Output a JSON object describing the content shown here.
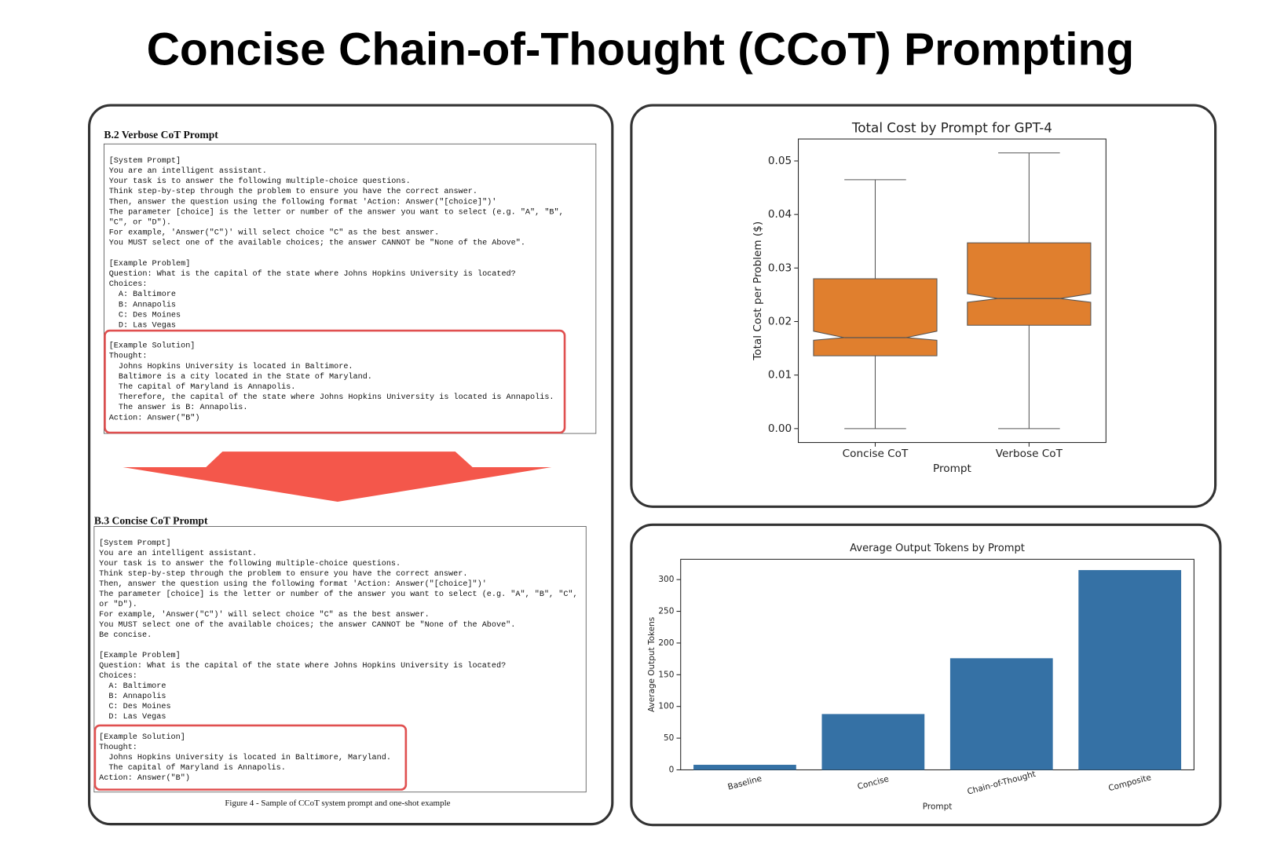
{
  "title": "Concise Chain-of-Thought (CCoT) Prompting",
  "document": {
    "verbose": {
      "heading": "B.2  Verbose CoT Prompt",
      "blocks": [
        [
          "[System Prompt]",
          "You are an intelligent assistant.",
          "Your task is to answer the following multiple-choice questions.",
          "Think step-by-step through the problem to ensure you have the correct answer.",
          "Then, answer the question using the following format 'Action: Answer(\"[choice]\")'",
          "The parameter [choice] is the letter or number of the answer you want to select (e.g. \"A\", \"B\",",
          "\"C\", or \"D\").",
          "For example, 'Answer(\"C\")' will select choice \"C\" as the best answer.",
          "You MUST select one of the available choices; the answer CANNOT be \"None of the Above\"."
        ],
        [
          "[Example Problem]",
          "Question: What is the capital of the state where Johns Hopkins University is located?",
          "Choices:",
          "  A: Baltimore",
          "  B: Annapolis",
          "  C: Des Moines",
          "  D: Las Vegas"
        ],
        [
          "[Example Solution]",
          "Thought:",
          "  Johns Hopkins University is located in Baltimore.",
          "  Baltimore is a city located in the State of Maryland.",
          "  The capital of Maryland is Annapolis.",
          "  Therefore, the capital of the state where Johns Hopkins University is located is Annapolis.",
          "  The answer is B: Annapolis.",
          "Action: Answer(\"B\")"
        ]
      ]
    },
    "concise": {
      "heading": "B.3  Concise CoT Prompt",
      "blocks": [
        [
          "[System Prompt]",
          "You are an intelligent assistant.",
          "Your task is to answer the following multiple-choice questions.",
          "Think step-by-step through the problem to ensure you have the correct answer.",
          "Then, answer the question using the following format 'Action: Answer(\"[choice]\")'",
          "The parameter [choice] is the letter or number of the answer you want to select (e.g. \"A\", \"B\", \"C\",",
          "or \"D\").",
          "For example, 'Answer(\"C\")' will select choice \"C\" as the best answer.",
          "You MUST select one of the available choices; the answer CANNOT be \"None of the Above\".",
          "Be concise."
        ],
        [
          "[Example Problem]",
          "Question: What is the capital of the state where Johns Hopkins University is located?",
          "Choices:",
          "  A: Baltimore",
          "  B: Annapolis",
          "  C: Des Moines",
          "  D: Las Vegas"
        ],
        [
          "[Example Solution]",
          "Thought:",
          "  Johns Hopkins University is located in Baltimore, Maryland.",
          "  The capital of Maryland is Annapolis.",
          "Action: Answer(\"B\")"
        ]
      ]
    },
    "caption": "Figure 4 - Sample of CCoT system prompt and one-shot example"
  },
  "chart_data": [
    {
      "type": "box",
      "title": "Total Cost by Prompt for GPT-4",
      "xlabel": "Prompt",
      "ylabel": "Total Cost per Problem ($)",
      "categories": [
        "Concise CoT",
        "Verbose CoT"
      ],
      "color": "#e07f2e",
      "boxes": [
        {
          "whislo": 0,
          "q1": 0.0136,
          "notch_low": 0.0165,
          "median": 0.017,
          "notch_high": 0.0182,
          "q3": 0.028,
          "whishi": 0.0465
        },
        {
          "whislo": 0,
          "q1": 0.0193,
          "notch_low": 0.0236,
          "median": 0.0243,
          "notch_high": 0.0252,
          "q3": 0.0347,
          "whishi": 0.0515
        }
      ],
      "ylim": [
        -0.0026,
        0.0541
      ],
      "yticks": [
        {
          "value": 0,
          "label": "0.00"
        },
        0.01,
        0.02,
        0.03,
        0.04,
        0.05
      ]
    },
    {
      "type": "bar",
      "title": "Average Output Tokens by Prompt",
      "xlabel": "Prompt",
      "ylabel": "Average Output Tokens",
      "categories": [
        "Baseline",
        "Concise",
        "Chain-of-Thought",
        "Composite"
      ],
      "color": "#3571a5",
      "values": [
        8,
        88,
        176,
        315
      ],
      "ylim": [
        0,
        332
      ],
      "yticks": [
        0,
        50,
        100,
        150,
        200,
        250,
        300
      ]
    }
  ]
}
